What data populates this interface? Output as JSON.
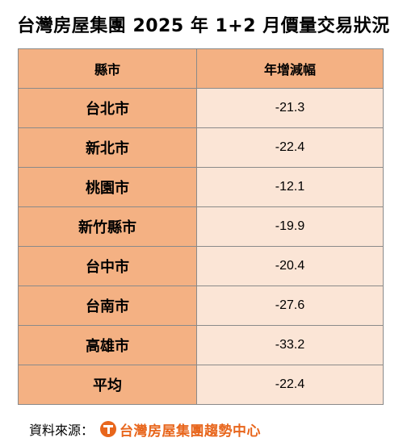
{
  "title": "台灣房屋集團 2025 年 1+2 月價量交易狀況",
  "table": {
    "headers": [
      "縣市",
      "年增減幅"
    ],
    "rows": [
      {
        "city": "台北市",
        "value": "-21.3"
      },
      {
        "city": "新北市",
        "value": "-22.4"
      },
      {
        "city": "桃園市",
        "value": "-12.1"
      },
      {
        "city": "新竹縣市",
        "value": "-19.9"
      },
      {
        "city": "台中市",
        "value": "-20.4"
      },
      {
        "city": "台南市",
        "value": "-27.6"
      },
      {
        "city": "高雄市",
        "value": "-33.2"
      },
      {
        "city": "平均",
        "value": "-22.4"
      }
    ]
  },
  "footer": {
    "source_label": "資料來源：",
    "logo_text": "台灣房屋集團趨勢中心",
    "logo_icon": "taiwan-realty-logo-icon",
    "accent_color": "#e8661c"
  }
}
